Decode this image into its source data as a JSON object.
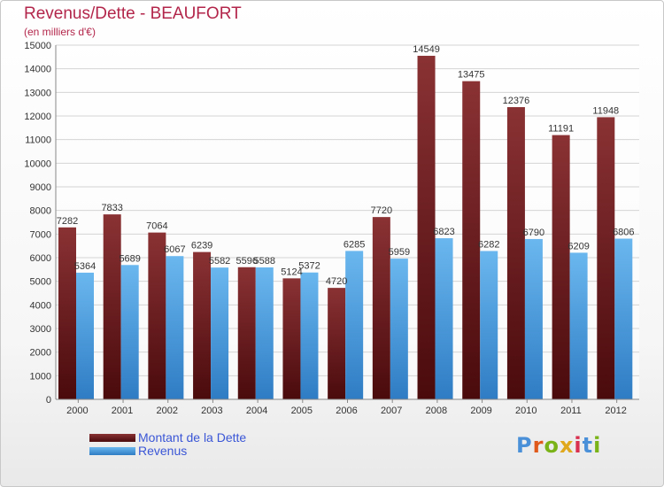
{
  "header": {
    "title": "Revenus/Dette - BEAUFORT",
    "subtitle": "(en milliers d'€)"
  },
  "logo": {
    "text": "Proxiti",
    "letter_colors": [
      "#4a90d9",
      "#e05a1c",
      "#7ab317",
      "#e0a81c",
      "#d9304f",
      "#4a90d9",
      "#7ab317"
    ]
  },
  "colors": {
    "title": "#b3264b",
    "axis_text": "#333333",
    "dette_top": "#8a3234",
    "dette_bottom": "#4a0a0c",
    "revenus_top": "#6ab7ef",
    "revenus_bottom": "#2f7cc4",
    "legend_text": "#3a56d6"
  },
  "chart_data": {
    "type": "bar",
    "title": "Revenus/Dette - BEAUFORT",
    "subtitle": "(en milliers d'€)",
    "categories": [
      "2000",
      "2001",
      "2002",
      "2003",
      "2004",
      "2005",
      "2006",
      "2007",
      "2008",
      "2009",
      "2010",
      "2011",
      "2012"
    ],
    "series": [
      {
        "name": "Montant de la Dette",
        "values": [
          7282,
          7833,
          7064,
          6239,
          5596,
          5124,
          4720,
          7720,
          14549,
          13475,
          12376,
          11191,
          11948
        ]
      },
      {
        "name": "Revenus",
        "values": [
          5364,
          5689,
          6067,
          5582,
          5588,
          5372,
          6285,
          5959,
          6823,
          6282,
          6790,
          6209,
          6806
        ]
      }
    ],
    "yticks": [
      "0",
      "1000",
      "2000",
      "3000",
      "4000",
      "5000",
      "6000",
      "7000",
      "8000",
      "9000",
      "10000",
      "11000",
      "12000",
      "13000",
      "14000",
      "15000"
    ],
    "ylim": [
      0,
      15000
    ],
    "grid": true,
    "legend_position": "bottom-left"
  }
}
